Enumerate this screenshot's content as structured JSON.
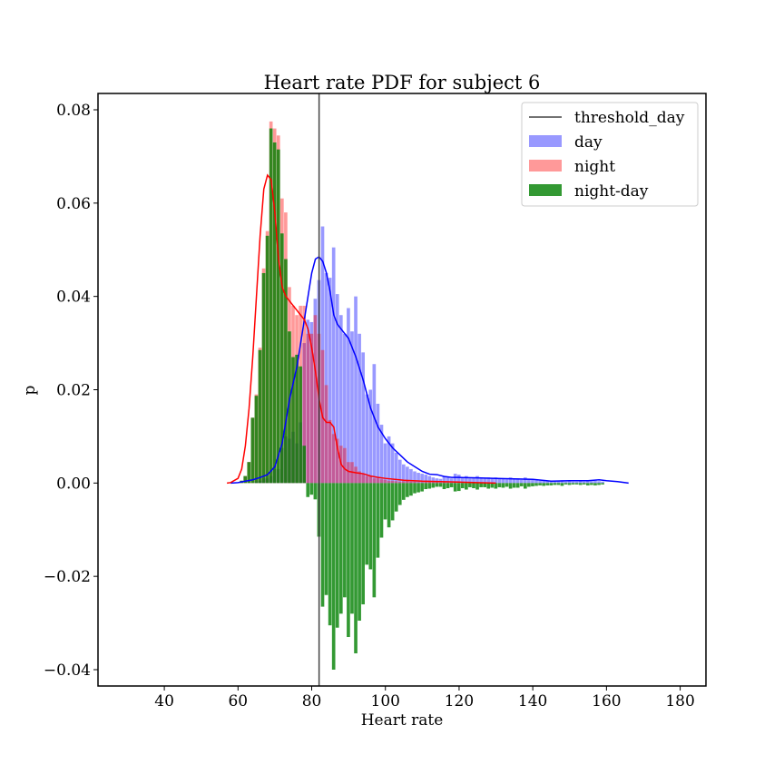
{
  "chart_data": {
    "type": "bar",
    "title": "Heart rate PDF for subject 6",
    "xlabel": "Heart rate",
    "ylabel": "p",
    "xlim": [
      22,
      187
    ],
    "ylim": [
      -0.0435,
      0.0835
    ],
    "xticks": [
      40,
      60,
      80,
      100,
      120,
      140,
      160,
      180
    ],
    "yticks": [
      -0.04,
      -0.02,
      0.0,
      0.02,
      0.04,
      0.06,
      0.08
    ],
    "ytick_labels": [
      "−0.04",
      "−0.02",
      "0.00",
      "0.02",
      "0.04",
      "0.06",
      "0.08"
    ],
    "grid": false,
    "legend_position": "top-right",
    "threshold_day": 82,
    "bin_width": 1,
    "bins": [
      61,
      62,
      63,
      64,
      65,
      66,
      67,
      68,
      69,
      70,
      71,
      72,
      73,
      74,
      75,
      76,
      77,
      78,
      79,
      80,
      81,
      82,
      83,
      84,
      85,
      86,
      87,
      88,
      89,
      90,
      91,
      92,
      93,
      94,
      95,
      96,
      97,
      98,
      99,
      100,
      101,
      102,
      103,
      104,
      105,
      106,
      107,
      108,
      109,
      110,
      111,
      112,
      113,
      114,
      115,
      116,
      117,
      118,
      119,
      120,
      121,
      122,
      123,
      124,
      125,
      126,
      127,
      128,
      129,
      130,
      131,
      132,
      133,
      134,
      135,
      136,
      137,
      138,
      139,
      140,
      141,
      142,
      143,
      144,
      145,
      146,
      147,
      148,
      149,
      150,
      151,
      152,
      153,
      154,
      155,
      156,
      157,
      158,
      159,
      160,
      161,
      162
    ],
    "series": [
      {
        "name": "day",
        "color": "#0000ff",
        "values": [
          0,
          0,
          0,
          0,
          0.0003,
          0.0005,
          0.001,
          0.001,
          0.0015,
          0.003,
          0.003,
          0.0075,
          0.01,
          0.0095,
          0.011,
          0.0085,
          0.013,
          0.03,
          0.035,
          0.0345,
          0.0395,
          0.0435,
          0.055,
          0.045,
          0.044,
          0.0505,
          0.0405,
          0.036,
          0.032,
          0.0375,
          0.0325,
          0.04,
          0.032,
          0.028,
          0.019,
          0.02,
          0.0255,
          0.017,
          0.0125,
          0.0085,
          0.01,
          0.0085,
          0.0065,
          0.005,
          0.004,
          0.0035,
          0.003,
          0.0025,
          0.0022,
          0.002,
          0.0018,
          0.0015,
          0.0012,
          0.001,
          0.0009,
          0.0015,
          0.0012,
          0.001,
          0.002,
          0.0018,
          0.0012,
          0.0015,
          0.001,
          0.0012,
          0.0015,
          0.001,
          0.001,
          0.0012,
          0.001,
          0.0012,
          0.0009,
          0.001,
          0.0008,
          0.0012,
          0.001,
          0.001,
          0.0007,
          0.0012,
          0.0008,
          0.0007,
          0.0006,
          0.0005,
          0.0006,
          0.0005,
          0.0005,
          0.0004,
          0.0004,
          0.0006,
          0.0003,
          0.0004,
          0.0003,
          0.0003,
          0.0004,
          0.0003,
          0.0005,
          0.0004,
          0.0005,
          0.0004,
          0.0003,
          0,
          0,
          0
        ]
      },
      {
        "name": "night",
        "color": "#ff0000",
        "values": [
          0.0005,
          0.0015,
          0.0045,
          0.014,
          0.019,
          0.029,
          0.046,
          0.054,
          0.0775,
          0.076,
          0.0745,
          0.061,
          0.058,
          0.042,
          0.038,
          0.036,
          0.038,
          0.038,
          0.032,
          0.032,
          0.036,
          0.032,
          0.0285,
          0.021,
          0.0135,
          0.0105,
          0.0095,
          0.008,
          0.0075,
          0.0045,
          0.0045,
          0.0035,
          0.0025,
          0.002,
          0.0015,
          0.0015,
          0.001,
          0.001,
          0.0008,
          0.0007,
          0.0005,
          0.0005,
          0.0004,
          0.0003,
          0.0004,
          0.0005,
          0.0003,
          0.0003,
          0.0002,
          0.0002,
          0.0005,
          0.0003,
          0.0002,
          0.0002,
          0.0001,
          0.0002,
          0.0001,
          0.0001,
          0.0002,
          0.0001,
          0.0001,
          0.0001,
          0.0001,
          0.0001,
          0.0001,
          0.0001,
          0.0001,
          0,
          0,
          0,
          0,
          0,
          0,
          0,
          0,
          0,
          0,
          0,
          0,
          0,
          0,
          0,
          0,
          0,
          0,
          0,
          0,
          0,
          0,
          0,
          0,
          0,
          0,
          0,
          0,
          0,
          0,
          0,
          0,
          0,
          0,
          0
        ]
      },
      {
        "name": "night-day",
        "color": "#008000",
        "values": [
          0.0005,
          0.0015,
          0.0045,
          0.014,
          0.0187,
          0.0285,
          0.045,
          0.053,
          0.076,
          0.073,
          0.0715,
          0.0535,
          0.048,
          0.0325,
          0.027,
          0.0275,
          0.025,
          0.008,
          -0.003,
          -0.0025,
          -0.0035,
          -0.0115,
          -0.0265,
          -0.024,
          -0.0305,
          -0.04,
          -0.031,
          -0.028,
          -0.0245,
          -0.033,
          -0.028,
          -0.0365,
          -0.0295,
          -0.026,
          -0.0175,
          -0.0185,
          -0.0245,
          -0.016,
          -0.0117,
          -0.0078,
          -0.0095,
          -0.008,
          -0.0061,
          -0.0047,
          -0.0036,
          -0.003,
          -0.0027,
          -0.0022,
          -0.002,
          -0.0018,
          -0.0013,
          -0.0012,
          -0.001,
          -0.0008,
          -0.0008,
          -0.0013,
          -0.0011,
          -0.0009,
          -0.0018,
          -0.0017,
          -0.0011,
          -0.0014,
          -0.0009,
          -0.0011,
          -0.0014,
          -0.0009,
          -0.0009,
          -0.0012,
          -0.001,
          -0.0012,
          -0.0009,
          -0.001,
          -0.0008,
          -0.0012,
          -0.001,
          -0.001,
          -0.0007,
          -0.0012,
          -0.0008,
          -0.0007,
          -0.0006,
          -0.0005,
          -0.0006,
          -0.0005,
          -0.0005,
          -0.0004,
          -0.0004,
          -0.0006,
          -0.0003,
          -0.0004,
          -0.0003,
          -0.0003,
          -0.0004,
          -0.0003,
          -0.0005,
          -0.0004,
          -0.0005,
          -0.0004,
          -0.0003,
          0,
          0,
          0
        ]
      }
    ],
    "kde_day": {
      "color": "#0000ff",
      "x": [
        58,
        60,
        62,
        64,
        66,
        68,
        70,
        72,
        74,
        76,
        77,
        78,
        79,
        80,
        81,
        82,
        83,
        84,
        85,
        86,
        87,
        88,
        89,
        90,
        92,
        94,
        96,
        98,
        100,
        102,
        104,
        106,
        108,
        110,
        112,
        114,
        116,
        118,
        120,
        125,
        130,
        135,
        140,
        145,
        150,
        155,
        158,
        160,
        163,
        166
      ],
      "y": [
        0,
        0.0001,
        0.0004,
        0.0007,
        0.0012,
        0.0018,
        0.0035,
        0.0085,
        0.018,
        0.025,
        0.03,
        0.035,
        0.04,
        0.045,
        0.048,
        0.0485,
        0.0475,
        0.045,
        0.041,
        0.036,
        0.034,
        0.033,
        0.032,
        0.031,
        0.027,
        0.022,
        0.016,
        0.012,
        0.0095,
        0.0075,
        0.006,
        0.0045,
        0.0035,
        0.0025,
        0.0019,
        0.0018,
        0.0014,
        0.0012,
        0.0012,
        0.0011,
        0.001,
        0.0009,
        0.0008,
        0.0004,
        0.0005,
        0.0005,
        0.0007,
        0.0005,
        0.0003,
        0
      ]
    },
    "kde_night": {
      "color": "#ff0000",
      "x": [
        57,
        58,
        60,
        61,
        62,
        63,
        64,
        65,
        66,
        67,
        68,
        69,
        70,
        71,
        72,
        73,
        74,
        75,
        76,
        77,
        78,
        79,
        80,
        81,
        82,
        83,
        84,
        85,
        86,
        87,
        88,
        89,
        90,
        92,
        94,
        96,
        98,
        100,
        105,
        110,
        115,
        120,
        125,
        130
      ],
      "y": [
        0,
        0.0001,
        0.001,
        0.003,
        0.008,
        0.016,
        0.027,
        0.04,
        0.053,
        0.063,
        0.066,
        0.065,
        0.058,
        0.048,
        0.042,
        0.04,
        0.039,
        0.038,
        0.037,
        0.036,
        0.035,
        0.033,
        0.029,
        0.024,
        0.018,
        0.014,
        0.013,
        0.013,
        0.012,
        0.0075,
        0.004,
        0.003,
        0.0025,
        0.0022,
        0.002,
        0.0015,
        0.0012,
        0.001,
        0.0006,
        0.0004,
        0.0003,
        0.0002,
        0.0001,
        0
      ]
    }
  }
}
